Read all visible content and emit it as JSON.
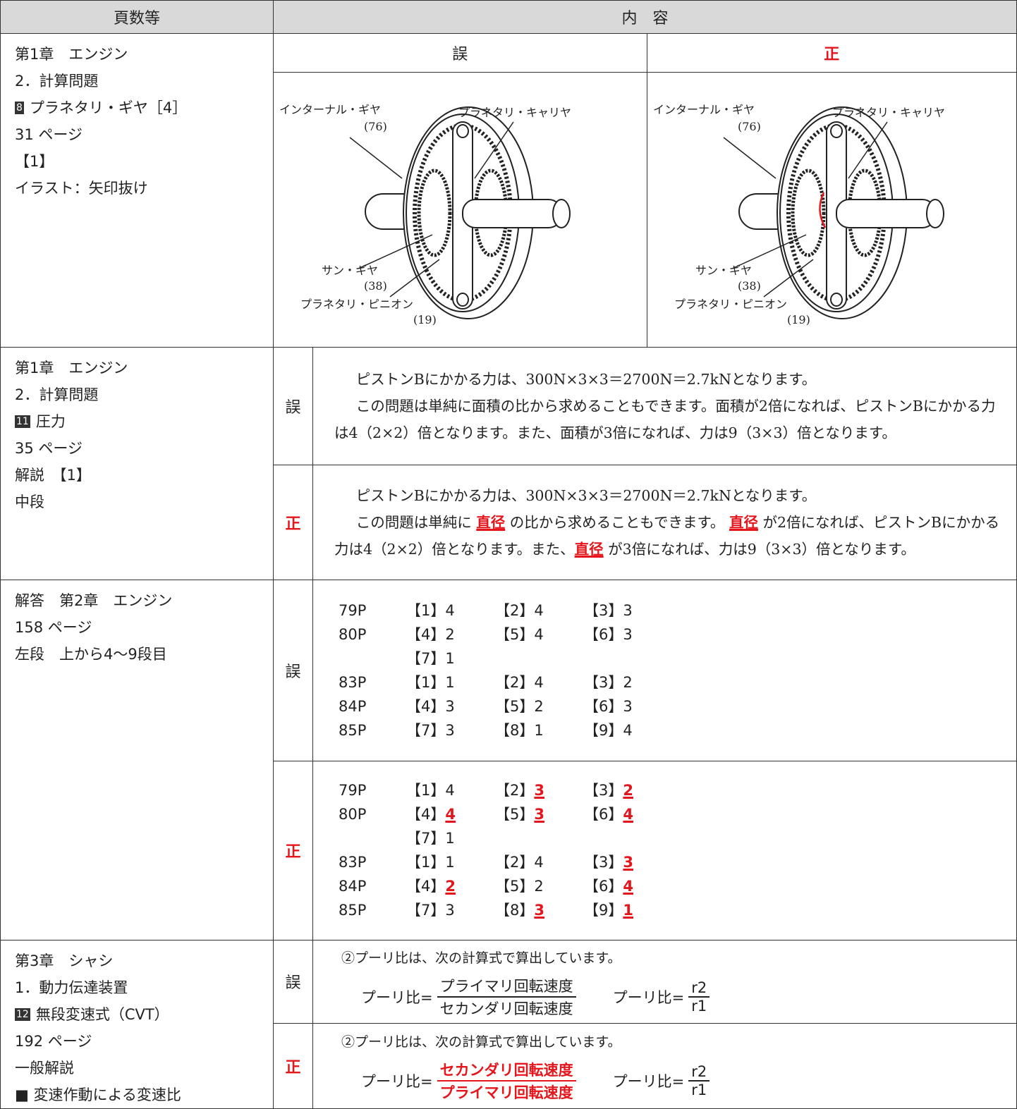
{
  "header": {
    "pages": "頁数等",
    "contents": "内　容"
  },
  "rows": [
    {
      "location": [
        "第1章　エンジン",
        "2．計算問題",
        {
          "badge": "8",
          "text": "プラネタリ・ギヤ［4］"
        },
        "31 ページ",
        "【1】",
        "イラスト：矢印抜け"
      ],
      "wrong_label": "誤",
      "correct_label": "正",
      "wrong": {
        "labels": {
          "internal": "インターナル・ギヤ",
          "internal_n": "(76)",
          "carrier": "プラネタリ・キャリヤ",
          "sun": "サン・ギヤ",
          "sun_n": "(38)",
          "pinion": "プラネタリ・ピニオン",
          "pinion_n": "(19)"
        }
      },
      "correct": {
        "labels": {
          "internal": "インターナル・ギヤ",
          "internal_n": "(76)",
          "carrier": "プラネタリ・キャリヤ",
          "sun": "サン・ギヤ",
          "sun_n": "(38)",
          "pinion": "プラネタリ・ピニオン",
          "pinion_n": "(19)"
        }
      }
    },
    {
      "location": [
        "第1章　エンジン",
        "2．計算問題",
        {
          "badge": "11",
          "text": "圧力"
        },
        "35 ページ",
        "解説　【1】",
        "中段"
      ],
      "wrong_label": "誤",
      "correct_label": "正",
      "wrong": [
        [
          {
            "text": "ピストンBにかかる力は、300N×3×3＝2700N＝2.7kNとなります。"
          }
        ],
        [
          {
            "text": "この問題は単純に面積の比から求めることもできます。面積が2倍になれば、ピストンBにかかる力は4（2×2）倍となります。また、面積が3倍になれば、力は9（3×3）倍となります。"
          }
        ]
      ],
      "correct": [
        [
          {
            "text": "ピストンBにかかる力は、300N×3×3＝2700N＝2.7kNとなります。"
          }
        ],
        [
          {
            "text": "この問題は単純に "
          },
          {
            "text": "直径",
            "em": true
          },
          {
            "text": " の比から求めることもできます。 "
          },
          {
            "text": "直径",
            "em": true
          },
          {
            "text": " が2倍になれば、ピストンBにかかる力は4（2×2）倍となります。また、"
          },
          {
            "text": "直径",
            "em": true
          },
          {
            "text": " が3倍になれば、力は9（3×3）倍となります。"
          }
        ]
      ]
    },
    {
      "location": [
        "解答　第2章　エンジン",
        "158 ページ",
        "左段　上から4～9段目"
      ],
      "wrong_label": "誤",
      "correct_label": "正",
      "wrong": [
        {
          "page": "79P",
          "items": [
            {
              "k": "【1】",
              "v": "4"
            },
            {
              "k": "【2】",
              "v": "4"
            },
            {
              "k": "【3】",
              "v": "3"
            }
          ]
        },
        {
          "page": "80P",
          "items": [
            {
              "k": "【4】",
              "v": "2"
            },
            {
              "k": "【5】",
              "v": "4"
            },
            {
              "k": "【6】",
              "v": "3"
            }
          ]
        },
        {
          "items": [
            {
              "k": "【7】",
              "v": "1"
            }
          ]
        },
        {
          "page": "83P",
          "items": [
            {
              "k": "【1】",
              "v": "1"
            },
            {
              "k": "【2】",
              "v": "4"
            },
            {
              "k": "【3】",
              "v": "2"
            }
          ]
        },
        {
          "page": "84P",
          "items": [
            {
              "k": "【4】",
              "v": "3"
            },
            {
              "k": "【5】",
              "v": "2"
            },
            {
              "k": "【6】",
              "v": "3"
            }
          ]
        },
        {
          "page": "85P",
          "items": [
            {
              "k": "【7】",
              "v": "3"
            },
            {
              "k": "【8】",
              "v": "1"
            },
            {
              "k": "【9】",
              "v": "4"
            }
          ]
        }
      ],
      "correct": [
        {
          "page": "79P",
          "items": [
            {
              "k": "【1】",
              "v": "4"
            },
            {
              "k": "【2】",
              "v": "3",
              "em": true
            },
            {
              "k": "【3】",
              "v": "2",
              "em": true
            }
          ]
        },
        {
          "page": "80P",
          "items": [
            {
              "k": "【4】",
              "v": "4",
              "em": true
            },
            {
              "k": "【5】",
              "v": "3",
              "em": true
            },
            {
              "k": "【6】",
              "v": "4",
              "em": true
            }
          ]
        },
        {
          "items": [
            {
              "k": "【7】",
              "v": "1"
            }
          ]
        },
        {
          "page": "83P",
          "items": [
            {
              "k": "【1】",
              "v": "1"
            },
            {
              "k": "【2】",
              "v": "4"
            },
            {
              "k": "【3】",
              "v": "3",
              "em": true
            }
          ]
        },
        {
          "page": "84P",
          "items": [
            {
              "k": "【4】",
              "v": "2",
              "em": true
            },
            {
              "k": "【5】",
              "v": "2"
            },
            {
              "k": "【6】",
              "v": "4",
              "em": true
            }
          ]
        },
        {
          "page": "85P",
          "items": [
            {
              "k": "【7】",
              "v": "3"
            },
            {
              "k": "【8】",
              "v": "3",
              "em": true
            },
            {
              "k": "【9】",
              "v": "1",
              "em": true
            }
          ]
        }
      ]
    },
    {
      "location": [
        "第3章　シャシ",
        "1．動力伝達装置",
        {
          "badge": "12",
          "text": "無段変速式（CVT）"
        },
        "192 ページ",
        "一般解説",
        "■ 変速作動による変速比"
      ],
      "wrong_label": "誤",
      "correct_label": "正",
      "wrong": {
        "intro": "②プーリ比は、次の計算式で算出しています。",
        "lhs": "プーリ比=",
        "num": "プライマリ回転速度",
        "den": "セカンダリ回転速度",
        "lhs2": "プーリ比=",
        "num2": "r2",
        "den2": "r1"
      },
      "correct": {
        "intro": "②プーリ比は、次の計算式で算出しています。",
        "lhs": "プーリ比=",
        "num": "セカンダリ回転速度",
        "den": "プライマリ回転速度",
        "lhs2": "プーリ比=",
        "num2": "r2",
        "den2": "r1"
      }
    }
  ]
}
